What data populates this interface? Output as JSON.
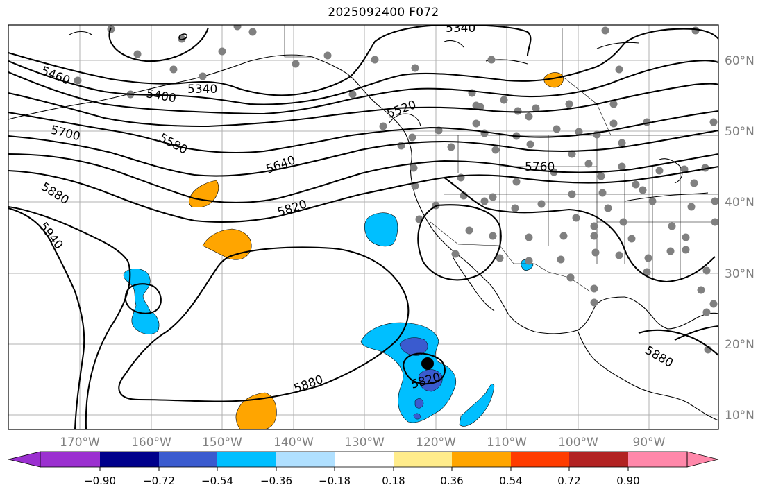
{
  "title": "2025092400 F072",
  "longitude_labels": [
    "170°W",
    "160°W",
    "150°W",
    "140°W",
    "130°W",
    "120°W",
    "110°W",
    "100°W",
    "90°W"
  ],
  "latitude_labels": [
    "60°N",
    "50°N",
    "40°N",
    "30°N",
    "20°N",
    "10°N"
  ],
  "colorbar": {
    "tick_labels": [
      "−0.90",
      "−0.72",
      "−0.54",
      "−0.36",
      "−0.18",
      "0.18",
      "0.36",
      "0.54",
      "0.72",
      "0.90"
    ],
    "colors": [
      "#9b30d0",
      "#00008b",
      "#3a5bcf",
      "#00bfff",
      "#b0e0ff",
      "#ffffff",
      "#ffec8b",
      "#ffa500",
      "#ff3c00",
      "#b22222",
      "#ff88aa"
    ]
  },
  "contour_labels": [
    "5340",
    "5460",
    "5400",
    "5340",
    "5520",
    "5700",
    "5580",
    "5640",
    "5760",
    "5880",
    "5820",
    "5940",
    "5880",
    "5820",
    "5880",
    "0"
  ],
  "colors": {
    "contour": "#000000",
    "station_dot": "#808080",
    "grid": "#b0b0b0",
    "coast": "#000000"
  }
}
